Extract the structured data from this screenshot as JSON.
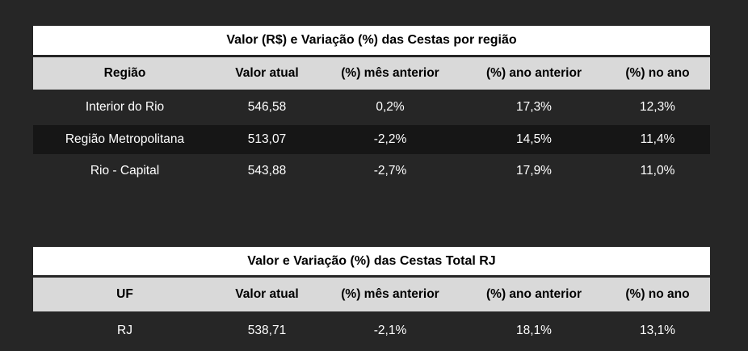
{
  "table_region": {
    "title": "Valor (R$) e Variação  (%) das  Cestas  por  região",
    "headers": [
      "Região",
      "Valor atual",
      "(%) mês  anterior",
      "(%) ano  anterior",
      "(%) no ano"
    ],
    "rows": [
      [
        "Interior  do Rio",
        "546,58",
        "0,2%",
        "17,3%",
        "12,3%"
      ],
      [
        "Região  Metropolitana",
        "513,07",
        "-2,2%",
        "14,5%",
        "11,4%"
      ],
      [
        "Rio  - Capital",
        "543,88",
        "-2,7%",
        "17,9%",
        "11,0%"
      ]
    ]
  },
  "table_total": {
    "title": "Valor  e  Variação  (%) das Cestas  Total  RJ",
    "headers": [
      "UF",
      "Valor atual",
      "(%) mês  anterior",
      "(%) ano  anterior",
      "(%) no ano"
    ],
    "rows": [
      [
        "RJ",
        "538,71",
        "-2,1%",
        "18,1%",
        "13,1%"
      ]
    ]
  }
}
